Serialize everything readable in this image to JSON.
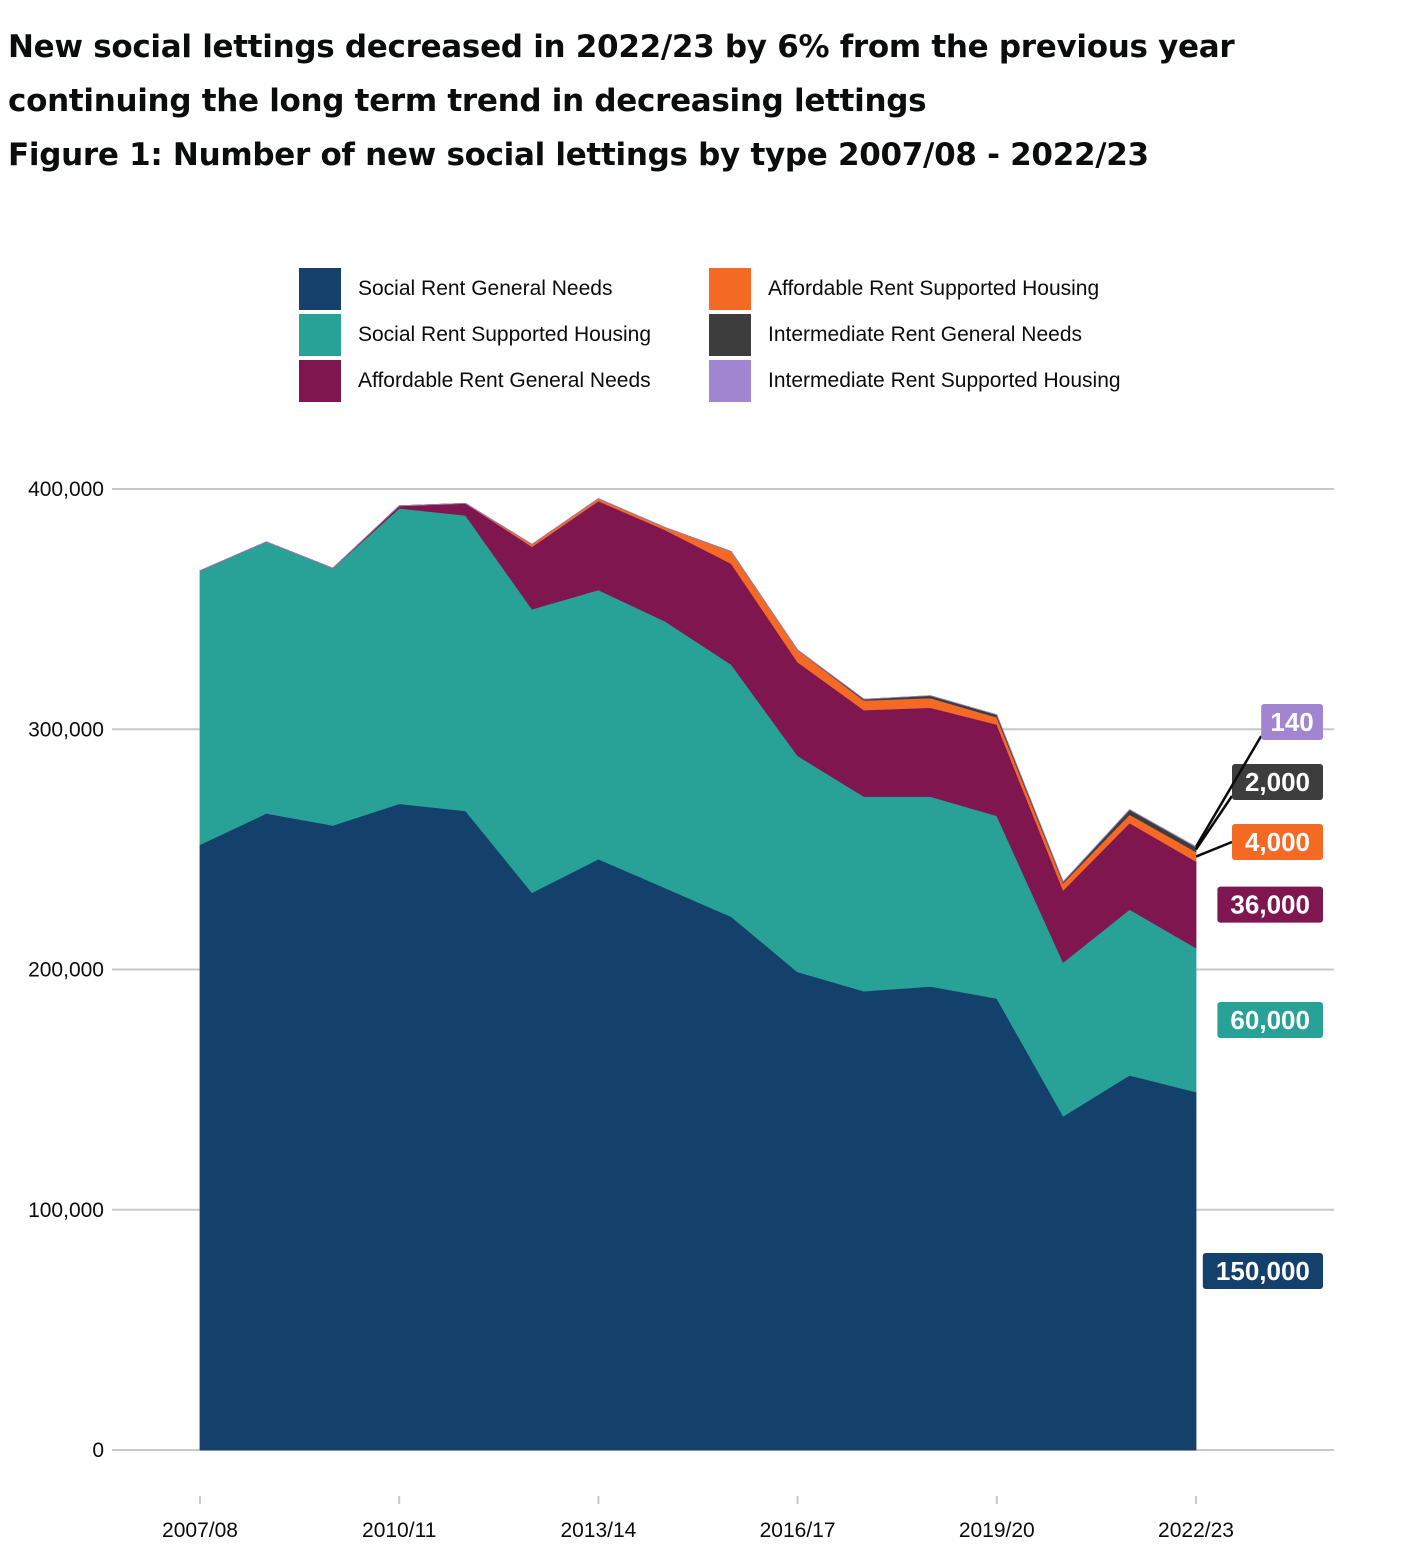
{
  "headline": "New social lettings decreased in 2022/23 by 6% from the previous year continuing the long term trend in decreasing lettings",
  "figure_title": "Figure 1: Number of new social lettings by type 2007/08 - 2022/23",
  "legend": [
    {
      "label": "Social Rent General Needs",
      "color": "#14416b"
    },
    {
      "label": "Social Rent Supported Housing",
      "color": "#28a197"
    },
    {
      "label": "Affordable Rent General Needs",
      "color": "#801650"
    },
    {
      "label": "Affordable Rent Supported Housing",
      "color": "#f46a25"
    },
    {
      "label": "Intermediate Rent General Needs",
      "color": "#3d3d3d"
    },
    {
      "label": "Intermediate Rent Supported Housing",
      "color": "#a285d1"
    }
  ],
  "chart_data": {
    "type": "area",
    "stacked": true,
    "x": [
      "2007/08",
      "2008/09",
      "2009/10",
      "2010/11",
      "2011/12",
      "2012/13",
      "2013/14",
      "2014/15",
      "2015/16",
      "2016/17",
      "2017/18",
      "2018/19",
      "2019/20",
      "2020/21",
      "2021/22",
      "2022/23"
    ],
    "x_tick_labels": [
      "2007/08",
      "2010/11",
      "2013/14",
      "2016/17",
      "2019/20",
      "2022/23"
    ],
    "y_tick_labels": [
      "0",
      "100,000",
      "200,000",
      "300,000",
      "400,000"
    ],
    "ylim": [
      0,
      400000
    ],
    "grid": "horizontal",
    "legend_position": "top",
    "series": [
      {
        "name": "Social Rent General Needs",
        "color": "#14416b",
        "values": [
          252000,
          265000,
          260000,
          269000,
          266000,
          232000,
          246000,
          234000,
          222000,
          199000,
          191000,
          193000,
          188000,
          139000,
          156000,
          149000
        ]
      },
      {
        "name": "Social Rent Supported Housing",
        "color": "#28a197",
        "values": [
          114000,
          113000,
          107000,
          123000,
          123000,
          118000,
          112000,
          111000,
          105000,
          90000,
          81000,
          79000,
          76000,
          64000,
          69000,
          60000
        ]
      },
      {
        "name": "Affordable Rent General Needs",
        "color": "#801650",
        "values": [
          0,
          0,
          0,
          1000,
          5000,
          26000,
          37000,
          38000,
          42000,
          39000,
          36000,
          37000,
          38000,
          30000,
          36000,
          36000
        ]
      },
      {
        "name": "Affordable Rent Supported Housing",
        "color": "#f46a25",
        "values": [
          0,
          0,
          0,
          0,
          0,
          1000,
          1000,
          1000,
          5000,
          5000,
          4000,
          4000,
          3000,
          3000,
          3500,
          4000
        ]
      },
      {
        "name": "Intermediate Rent General Needs",
        "color": "#3d3d3d",
        "values": [
          0,
          0,
          0,
          0,
          0,
          0,
          0,
          0,
          0,
          0,
          500,
          1000,
          1000,
          500,
          2000,
          2000
        ]
      },
      {
        "name": "Intermediate Rent Supported Housing",
        "color": "#a285d1",
        "values": [
          0,
          0,
          0,
          0,
          0,
          0,
          0,
          0,
          0,
          0,
          0,
          0,
          0,
          0,
          100,
          140
        ]
      }
    ],
    "end_labels": [
      {
        "text": "150,000",
        "series": "Social Rent General Needs"
      },
      {
        "text": "60,000",
        "series": "Social Rent Supported Housing"
      },
      {
        "text": "36,000",
        "series": "Affordable Rent General Needs"
      },
      {
        "text": "4,000",
        "series": "Affordable Rent Supported Housing"
      },
      {
        "text": "2,000",
        "series": "Intermediate Rent General Needs"
      },
      {
        "text": "140",
        "series": "Intermediate Rent Supported Housing"
      }
    ]
  }
}
